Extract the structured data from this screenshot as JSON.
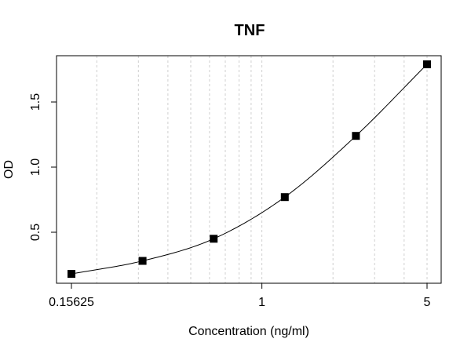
{
  "chart_data": {
    "type": "scatter",
    "title": "TNF",
    "xlabel": "Concentration (ng/ml)",
    "ylabel": "OD",
    "x_scale": "log",
    "grid": "x-minor-dashed",
    "xlim": [
      0.15625,
      5
    ],
    "ylim": [
      0.17,
      1.8
    ],
    "x_ticks": [
      0.15625,
      1,
      5
    ],
    "x_tick_labels": [
      "0.15625",
      "1",
      "5"
    ],
    "y_ticks": [
      0.5,
      1.0,
      1.5
    ],
    "y_tick_labels": [
      "0.5",
      "1.0",
      "1.5"
    ],
    "series": [
      {
        "x": [
          0.15625,
          0.3125,
          0.625,
          1.25,
          2.5,
          5
        ],
        "y": [
          0.18,
          0.28,
          0.45,
          0.77,
          1.24,
          1.79
        ],
        "marker": "square",
        "color": "#000000",
        "fit_curve": true
      }
    ]
  }
}
